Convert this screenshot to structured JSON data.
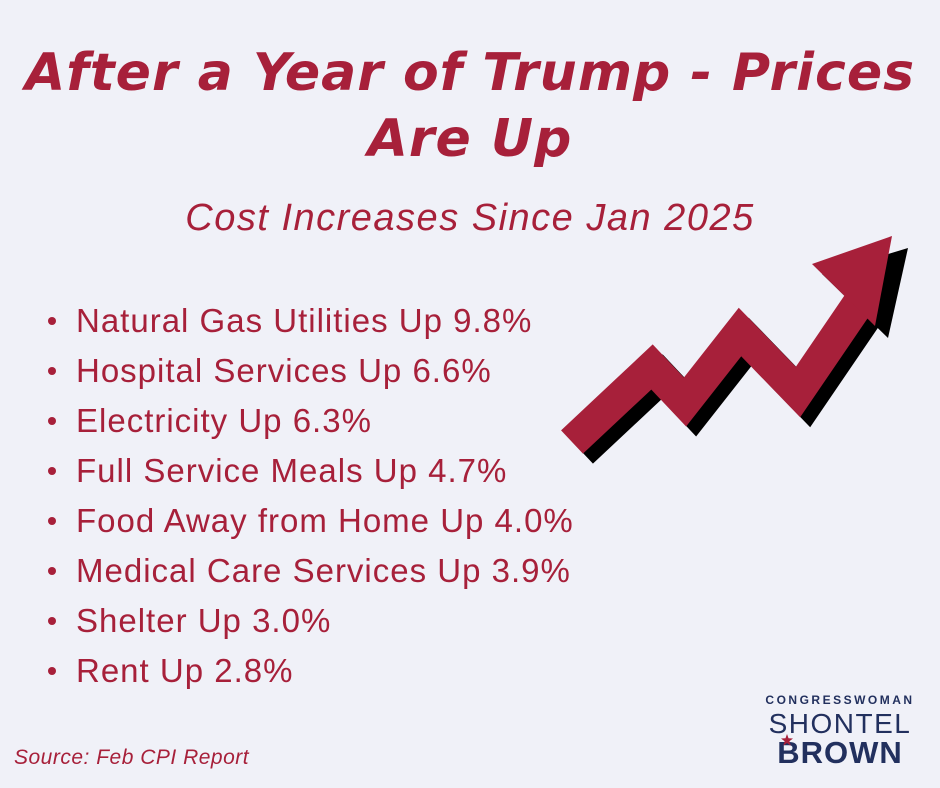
{
  "title": "After a Year of Trump - Prices Are Up",
  "subtitle": "Cost Increases Since Jan 2025",
  "items": [
    "Natural Gas Utilities Up 9.8%",
    "Hospital Services Up 6.6%",
    "Electricity Up 6.3%",
    "Full Service Meals Up 4.7%",
    "Food Away from Home Up 4.0%",
    "Medical Care Services Up 3.9%",
    "Shelter Up 3.0%",
    "Rent Up 2.8%"
  ],
  "source": "Source: Feb CPI Report",
  "logo": {
    "line1": "CONGRESSWOMAN",
    "line2": "SHONTEL",
    "line3": "BROWN"
  },
  "colors": {
    "background": "#f0f1f8",
    "accent_red": "#a7203a",
    "navy": "#22305e",
    "arrow_shadow": "#000000"
  },
  "icons": {
    "arrow": "trending-up-arrow-icon",
    "bullet": "bullet-dot-icon",
    "logo_star": "star-icon"
  }
}
